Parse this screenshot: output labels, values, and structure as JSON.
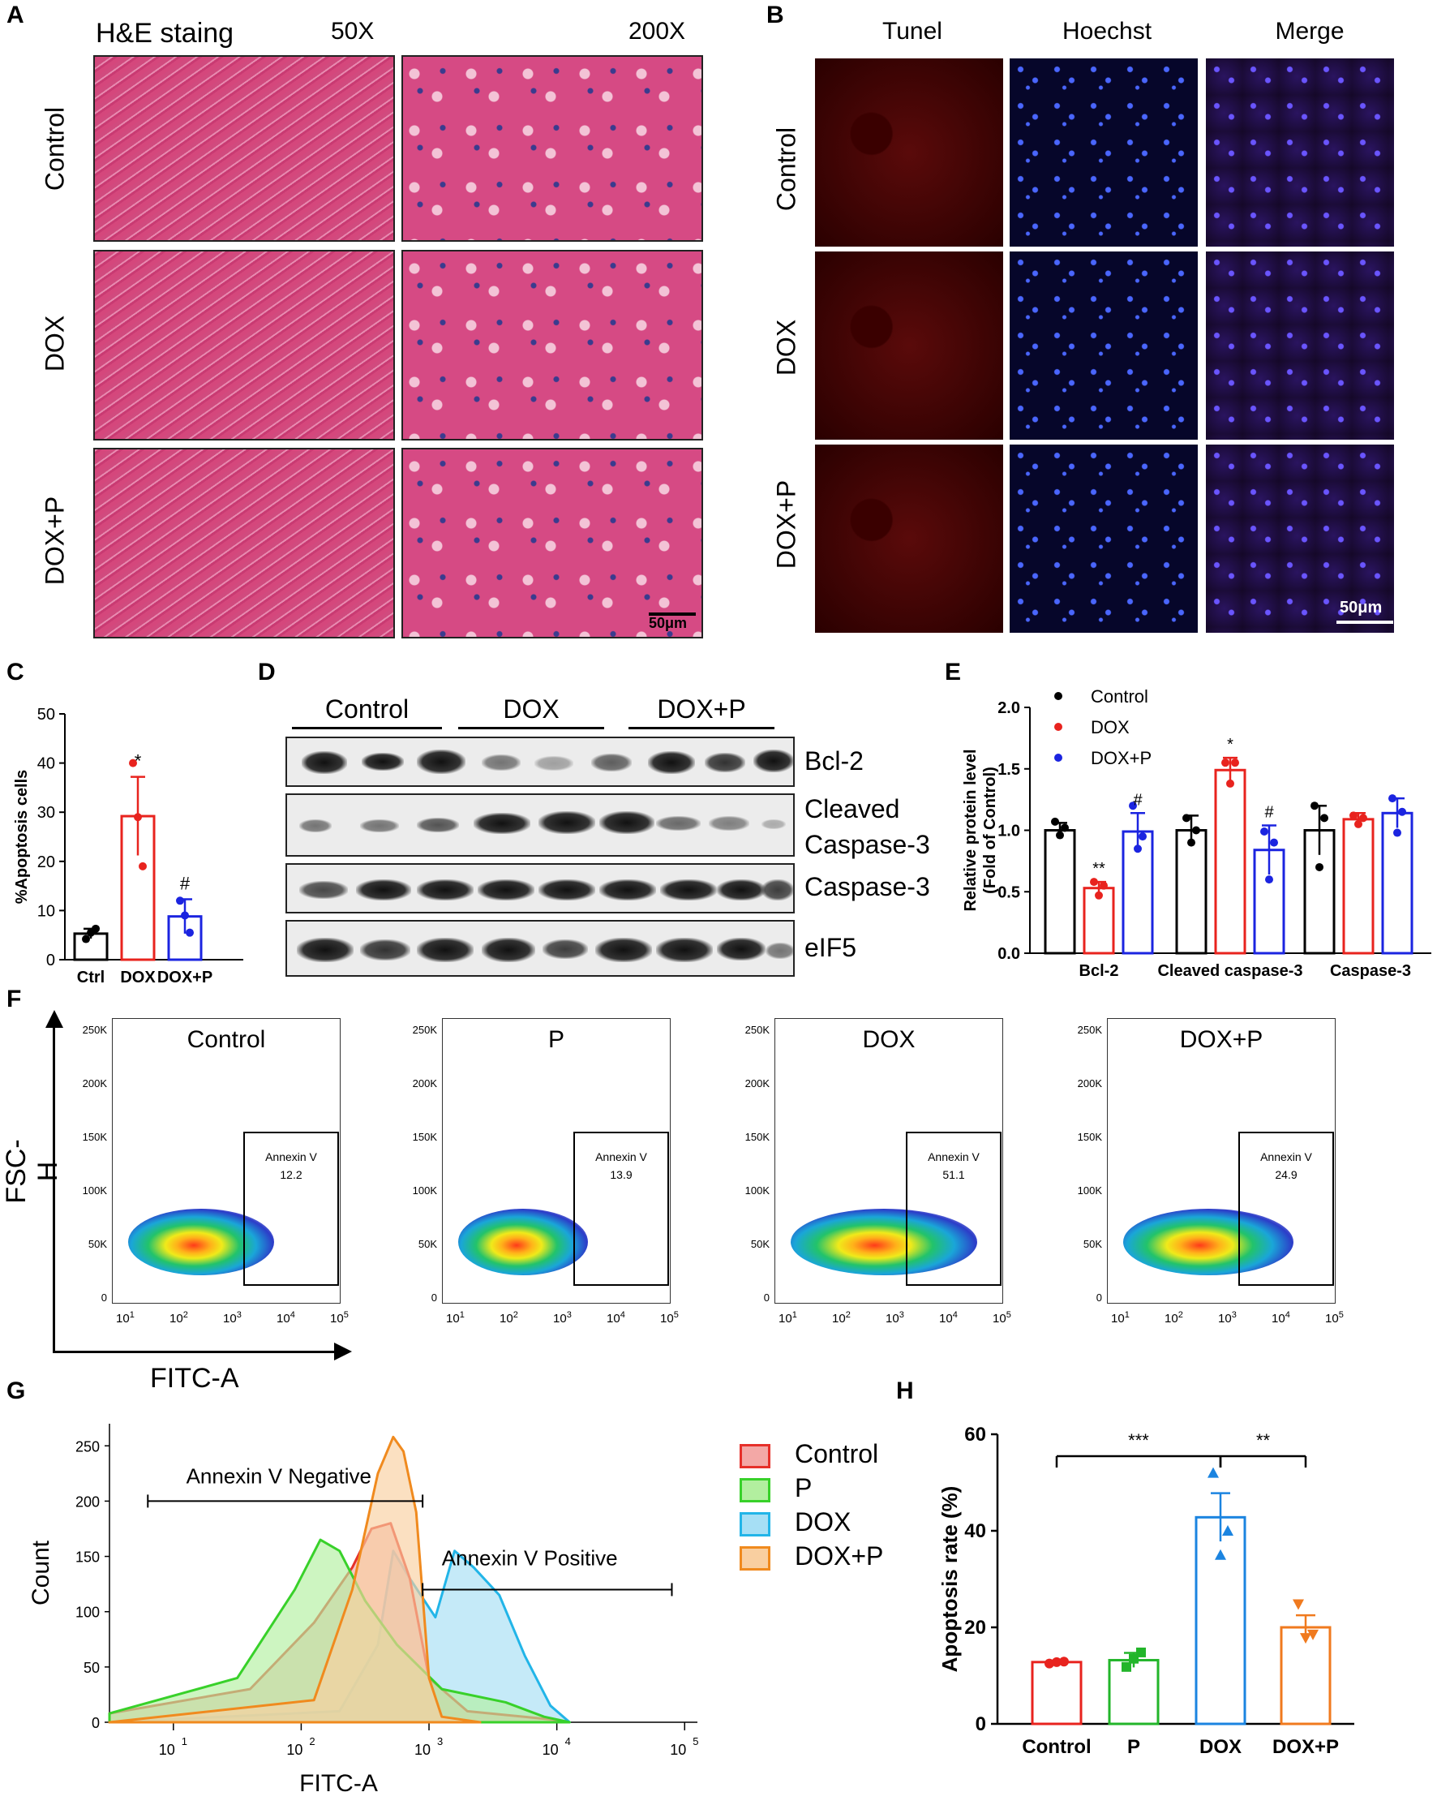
{
  "panel_labels": [
    "A",
    "B",
    "C",
    "D",
    "E",
    "F",
    "G",
    "H"
  ],
  "panelA": {
    "title": "H&E staing",
    "mag_low": "50X",
    "mag_high": "200X",
    "rows": [
      "Control",
      "DOX",
      "DOX+P"
    ],
    "scale": "50μm"
  },
  "panelB": {
    "cols": [
      "Tunel",
      "Hoechst",
      "Merge"
    ],
    "rows": [
      "Control",
      "DOX",
      "DOX+P"
    ],
    "scale": "50μm"
  },
  "panelD": {
    "groups": [
      "Control",
      "DOX",
      "DOX+P"
    ],
    "blots": [
      "Bcl-2",
      "Cleaved\nCaspase-3",
      "Caspase-3",
      "eIF5"
    ]
  },
  "panelF": {
    "xlabel": "FITC-A",
    "ylabel": "FSC-H",
    "yticks": [
      "250K",
      "200K",
      "150K",
      "100K",
      "50K",
      "0"
    ],
    "xticks": [
      "10",
      "10",
      "10",
      "10",
      "10"
    ],
    "xexp": [
      "1",
      "2",
      "3",
      "4",
      "5"
    ],
    "gate_label": "Annexin V",
    "plots": [
      {
        "title": "Control",
        "value": "12.2"
      },
      {
        "title": "P",
        "value": "13.9"
      },
      {
        "title": "DOX",
        "value": "51.1"
      },
      {
        "title": "DOX+P",
        "value": "24.9"
      }
    ]
  },
  "panelG": {
    "neg_label": "Annexin V Negative",
    "pos_label": "Annexin V Positive",
    "legend": [
      {
        "name": "Control",
        "color": "#e6302a",
        "fill": "#f3a8a6"
      },
      {
        "name": "P",
        "color": "#38d12a",
        "fill": "#b2ef9f"
      },
      {
        "name": "DOX",
        "color": "#22b5e8",
        "fill": "#a6dff5"
      },
      {
        "name": "DOX+P",
        "color": "#f08a1e",
        "fill": "#f9cfa0"
      }
    ]
  },
  "chart_data": [
    {
      "type": "bar",
      "id": "C",
      "categories": [
        "Ctrl",
        "DOX",
        "DOX+P"
      ],
      "values": [
        5.3,
        29.2,
        8.8
      ],
      "errors": [
        1.0,
        8.0,
        3.5
      ],
      "points": [
        [
          4.2,
          5.5,
          6.3
        ],
        [
          40,
          29,
          19
        ],
        [
          12,
          9,
          5.5
        ]
      ],
      "colors": [
        "#000000",
        "#e8231e",
        "#1b24e0"
      ],
      "ylabel": "%Apoptosis cells",
      "ylim": [
        0,
        50
      ],
      "yticks": [
        0,
        10,
        20,
        30,
        40,
        50
      ],
      "annotations": [
        "",
        "*",
        "#"
      ]
    },
    {
      "type": "bar",
      "id": "E",
      "groups": [
        "Bcl-2",
        "Cleaved caspase-3",
        "Caspase-3"
      ],
      "series": [
        {
          "name": "Control",
          "color": "#000000",
          "values": [
            1.0,
            1.0,
            1.0
          ],
          "errors": [
            0.06,
            0.12,
            0.2
          ],
          "points": [
            [
              1.07,
              0.96,
              1.02
            ],
            [
              1.1,
              0.9,
              1.0
            ],
            [
              1.2,
              0.7,
              1.1
            ]
          ]
        },
        {
          "name": "DOX",
          "color": "#e8231e",
          "values": [
            0.53,
            1.49,
            1.09
          ],
          "errors": [
            0.05,
            0.1,
            0.05
          ],
          "points": [
            [
              0.58,
              0.47,
              0.55
            ],
            [
              1.55,
              1.38,
              1.55
            ],
            [
              1.12,
              1.05,
              1.1
            ]
          ]
        },
        {
          "name": "DOX+P",
          "color": "#1b24e0",
          "values": [
            0.99,
            0.84,
            1.14
          ],
          "errors": [
            0.15,
            0.2,
            0.12
          ],
          "points": [
            [
              1.2,
              0.85,
              0.95
            ],
            [
              0.99,
              0.6,
              0.9
            ],
            [
              1.26,
              0.98,
              1.15
            ]
          ]
        }
      ],
      "annotations": [
        [
          "",
          "**",
          "#"
        ],
        [
          "",
          "*",
          "#"
        ],
        [
          "",
          "",
          ""
        ]
      ],
      "ylabel": "Relative protein level",
      "ylabel2": "(Fold of Control)",
      "ylim": [
        0,
        2.0
      ],
      "yticks": [
        "0.0",
        "0.5",
        "1.0",
        "1.5",
        "2.0"
      ]
    },
    {
      "type": "area",
      "id": "G",
      "xlabel": "FITC-A",
      "ylabel": "Count",
      "yticks": [
        0,
        50,
        100,
        150,
        200,
        250
      ],
      "ylim": [
        0,
        270
      ],
      "xticks": [
        "10",
        "10",
        "10",
        "10",
        "10"
      ],
      "xexp": [
        "1",
        "2",
        "3",
        "4",
        "5"
      ],
      "xlim_log": [
        0.5,
        5.1
      ],
      "series": [
        {
          "name": "Control",
          "points": [
            [
              0.5,
              8
            ],
            [
              1.6,
              30
            ],
            [
              2.1,
              90
            ],
            [
              2.4,
              140
            ],
            [
              2.55,
              175
            ],
            [
              2.7,
              180
            ],
            [
              2.85,
              130
            ],
            [
              3.0,
              40
            ],
            [
              3.3,
              10
            ],
            [
              4.0,
              2
            ]
          ]
        },
        {
          "name": "P",
          "points": [
            [
              0.5,
              8
            ],
            [
              1.5,
              40
            ],
            [
              1.95,
              120
            ],
            [
              2.15,
              165
            ],
            [
              2.3,
              155
            ],
            [
              2.5,
              110
            ],
            [
              2.75,
              70
            ],
            [
              3.1,
              30
            ],
            [
              3.6,
              18
            ],
            [
              3.9,
              5
            ],
            [
              4.1,
              0
            ]
          ]
        },
        {
          "name": "DOX",
          "points": [
            [
              0.5,
              0
            ],
            [
              2.3,
              10
            ],
            [
              2.6,
              70
            ],
            [
              2.72,
              155
            ],
            [
              2.85,
              130
            ],
            [
              3.05,
              95
            ],
            [
              3.2,
              155
            ],
            [
              3.35,
              140
            ],
            [
              3.55,
              115
            ],
            [
              3.75,
              60
            ],
            [
              3.95,
              15
            ],
            [
              4.1,
              0
            ]
          ]
        },
        {
          "name": "DOX+P",
          "points": [
            [
              0.5,
              0
            ],
            [
              2.1,
              20
            ],
            [
              2.4,
              120
            ],
            [
              2.6,
              225
            ],
            [
              2.72,
              258
            ],
            [
              2.8,
              245
            ],
            [
              2.9,
              190
            ],
            [
              3.0,
              40
            ],
            [
              3.1,
              5
            ],
            [
              3.4,
              0
            ]
          ]
        }
      ]
    },
    {
      "type": "bar",
      "id": "H",
      "categories": [
        "Control",
        "P",
        "DOX",
        "DOX+P"
      ],
      "values": [
        12.8,
        13.2,
        42.8,
        20.0
      ],
      "errors": [
        0.3,
        1.5,
        5.0,
        2.5
      ],
      "points": [
        [
          12.5,
          12.8,
          12.9
        ],
        [
          11.8,
          13.5,
          14.8
        ],
        [
          52,
          35,
          40
        ],
        [
          24.8,
          17.8,
          18.5
        ]
      ],
      "colors": [
        "#e8231e",
        "#22b52a",
        "#1b84e0",
        "#f07a1e"
      ],
      "ylabel": "Apoptosis rate (%)",
      "ylim": [
        0,
        60
      ],
      "yticks": [
        0,
        20,
        40,
        60
      ],
      "brackets": [
        {
          "from": 0,
          "to": 2,
          "label": "***"
        },
        {
          "from": 2,
          "to": 3,
          "label": "**"
        }
      ]
    }
  ]
}
